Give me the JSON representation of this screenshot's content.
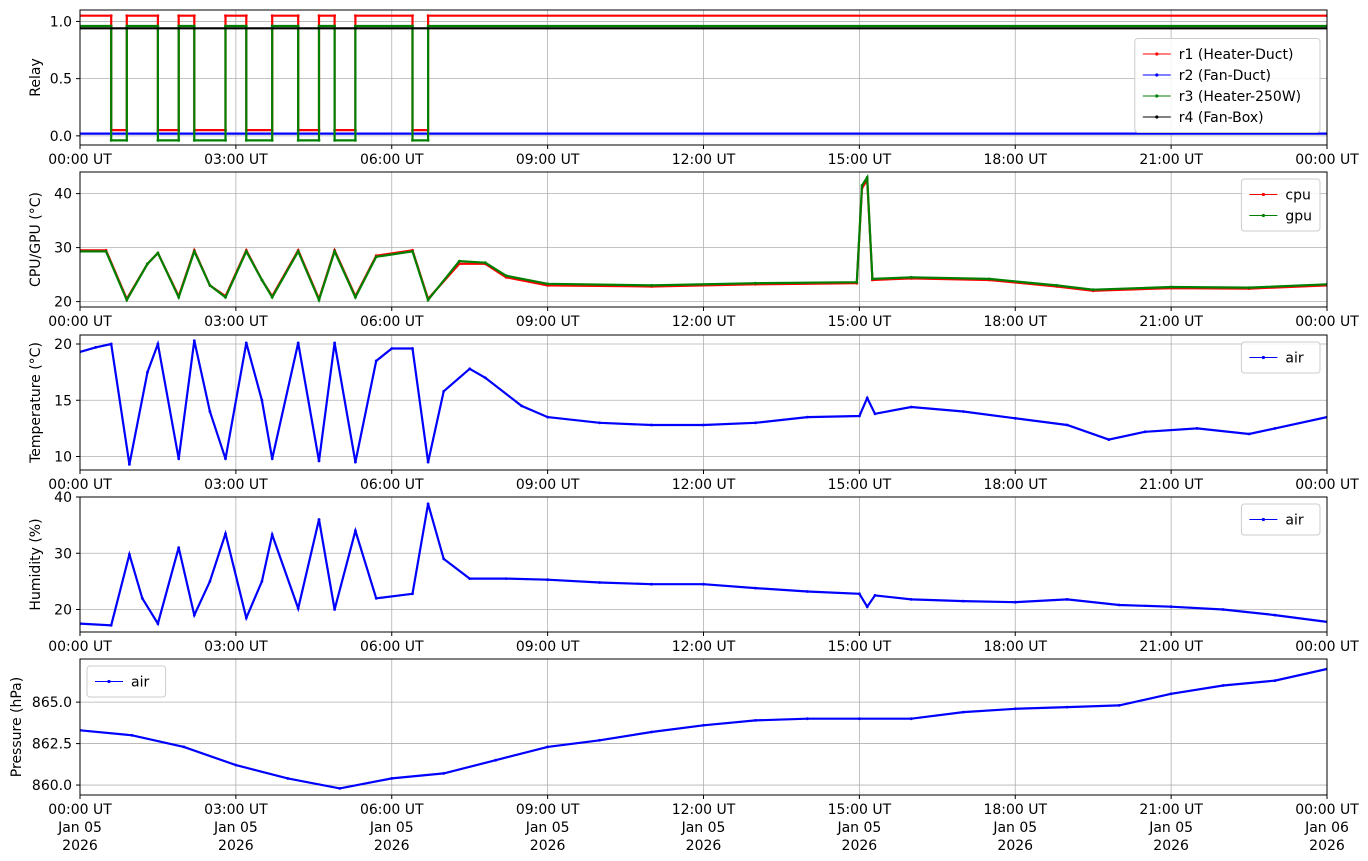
{
  "chart_data": [
    {
      "type": "line",
      "ylabel": "Relay",
      "ylim": [
        -0.08,
        1.1
      ],
      "yticks": [
        "0.0",
        "0.5",
        "1.0"
      ],
      "ytick_values": [
        0.0,
        0.5,
        1.0
      ],
      "grid": true,
      "legend_position": "center-right",
      "series": [
        {
          "name": "r1 (Heater-Duct)",
          "color": "#ff0000",
          "values": [
            [
              0,
              1.05
            ],
            [
              0.6,
              1.05
            ],
            [
              0.6,
              0.05
            ],
            [
              0.9,
              0.05
            ],
            [
              0.9,
              1.05
            ],
            [
              1.5,
              1.05
            ],
            [
              1.5,
              0.05
            ],
            [
              1.9,
              0.05
            ],
            [
              1.9,
              1.05
            ],
            [
              2.2,
              1.05
            ],
            [
              2.2,
              0.05
            ],
            [
              2.8,
              0.05
            ],
            [
              2.8,
              1.05
            ],
            [
              3.2,
              1.05
            ],
            [
              3.2,
              0.05
            ],
            [
              3.7,
              0.05
            ],
            [
              3.7,
              1.05
            ],
            [
              4.2,
              1.05
            ],
            [
              4.2,
              0.05
            ],
            [
              4.6,
              0.05
            ],
            [
              4.6,
              1.05
            ],
            [
              4.9,
              1.05
            ],
            [
              4.9,
              0.05
            ],
            [
              5.3,
              0.05
            ],
            [
              5.3,
              1.05
            ],
            [
              6.4,
              1.05
            ],
            [
              6.4,
              0.05
            ],
            [
              6.7,
              0.05
            ],
            [
              6.7,
              1.05
            ],
            [
              24,
              1.05
            ]
          ]
        },
        {
          "name": "r2 (Fan-Duct)",
          "color": "#0000ff",
          "values": [
            [
              0,
              0.02
            ],
            [
              24,
              0.02
            ]
          ]
        },
        {
          "name": "r3 (Heater-250W)",
          "color": "#008000",
          "values": [
            [
              0,
              0.96
            ],
            [
              0.6,
              0.96
            ],
            [
              0.6,
              -0.04
            ],
            [
              0.9,
              -0.04
            ],
            [
              0.9,
              0.96
            ],
            [
              1.5,
              0.96
            ],
            [
              1.5,
              -0.04
            ],
            [
              1.9,
              -0.04
            ],
            [
              1.9,
              0.96
            ],
            [
              2.2,
              0.96
            ],
            [
              2.2,
              -0.04
            ],
            [
              2.8,
              -0.04
            ],
            [
              2.8,
              0.96
            ],
            [
              3.2,
              0.96
            ],
            [
              3.2,
              -0.04
            ],
            [
              3.7,
              -0.04
            ],
            [
              3.7,
              0.96
            ],
            [
              4.2,
              0.96
            ],
            [
              4.2,
              -0.04
            ],
            [
              4.6,
              -0.04
            ],
            [
              4.6,
              0.96
            ],
            [
              4.9,
              0.96
            ],
            [
              4.9,
              -0.04
            ],
            [
              5.3,
              -0.04
            ],
            [
              5.3,
              0.96
            ],
            [
              6.4,
              0.96
            ],
            [
              6.4,
              -0.04
            ],
            [
              6.7,
              -0.04
            ],
            [
              6.7,
              0.96
            ],
            [
              24,
              0.96
            ]
          ]
        },
        {
          "name": "r4 (Fan-Box)",
          "color": "#000000",
          "values": [
            [
              0,
              0.94
            ],
            [
              24,
              0.94
            ]
          ]
        }
      ]
    },
    {
      "type": "line",
      "ylabel": "CPU/GPU (°C)",
      "ylim": [
        19,
        44
      ],
      "yticks": [
        "20",
        "30",
        "40"
      ],
      "ytick_values": [
        20,
        30,
        40
      ],
      "grid": true,
      "legend_position": "top-right",
      "series": [
        {
          "name": "cpu",
          "color": "#ff0000",
          "values": [
            [
              0,
              29.5
            ],
            [
              0.5,
              29.5
            ],
            [
              0.9,
              20.5
            ],
            [
              1.3,
              27
            ],
            [
              1.5,
              29
            ],
            [
              1.9,
              21
            ],
            [
              2.2,
              29.5
            ],
            [
              2.5,
              23
            ],
            [
              2.8,
              21
            ],
            [
              3.2,
              29.5
            ],
            [
              3.5,
              24
            ],
            [
              3.7,
              21
            ],
            [
              4.2,
              29.5
            ],
            [
              4.6,
              20.5
            ],
            [
              4.9,
              29.5
            ],
            [
              5.3,
              21
            ],
            [
              5.7,
              28.5
            ],
            [
              6.4,
              29.5
            ],
            [
              6.7,
              20.5
            ],
            [
              7.3,
              27
            ],
            [
              7.8,
              27
            ],
            [
              8.2,
              24.5
            ],
            [
              9,
              23
            ],
            [
              11,
              22.8
            ],
            [
              13,
              23.2
            ],
            [
              14.95,
              23.4
            ],
            [
              15.05,
              41
            ],
            [
              15.15,
              42.5
            ],
            [
              15.25,
              24
            ],
            [
              16,
              24.3
            ],
            [
              17.5,
              24
            ],
            [
              18.8,
              22.8
            ],
            [
              19.5,
              22
            ],
            [
              21,
              22.5
            ],
            [
              22.5,
              22.4
            ],
            [
              24,
              23
            ]
          ]
        },
        {
          "name": "gpu",
          "color": "#008000",
          "values": [
            [
              0,
              29.3
            ],
            [
              0.5,
              29.3
            ],
            [
              0.9,
              20.3
            ],
            [
              1.3,
              27
            ],
            [
              1.5,
              29
            ],
            [
              1.9,
              20.8
            ],
            [
              2.2,
              29.3
            ],
            [
              2.5,
              23
            ],
            [
              2.8,
              20.8
            ],
            [
              3.2,
              29.3
            ],
            [
              3.5,
              24
            ],
            [
              3.7,
              20.8
            ],
            [
              4.2,
              29.3
            ],
            [
              4.6,
              20.3
            ],
            [
              4.9,
              29.3
            ],
            [
              5.3,
              20.8
            ],
            [
              5.7,
              28.3
            ],
            [
              6.4,
              29.3
            ],
            [
              6.7,
              20.3
            ],
            [
              7.3,
              27.5
            ],
            [
              7.8,
              27.2
            ],
            [
              8.2,
              24.8
            ],
            [
              9,
              23.3
            ],
            [
              11,
              23
            ],
            [
              13,
              23.4
            ],
            [
              14.95,
              23.6
            ],
            [
              15.05,
              41.5
            ],
            [
              15.15,
              43
            ],
            [
              15.25,
              24.2
            ],
            [
              16,
              24.5
            ],
            [
              17.5,
              24.2
            ],
            [
              18.8,
              23
            ],
            [
              19.5,
              22.2
            ],
            [
              21,
              22.7
            ],
            [
              22.5,
              22.6
            ],
            [
              24,
              23.2
            ]
          ]
        }
      ]
    },
    {
      "type": "line",
      "ylabel": "Temperature (°C)",
      "ylim": [
        8.8,
        20.8
      ],
      "yticks": [
        "10",
        "15",
        "20"
      ],
      "ytick_values": [
        10,
        15,
        20
      ],
      "grid": true,
      "legend_position": "top-right",
      "series": [
        {
          "name": "air",
          "color": "#0000ff",
          "values": [
            [
              0,
              19.3
            ],
            [
              0.3,
              19.7
            ],
            [
              0.6,
              20
            ],
            [
              0.95,
              9.3
            ],
            [
              1.3,
              17.5
            ],
            [
              1.5,
              20
            ],
            [
              1.9,
              9.8
            ],
            [
              2.2,
              20.3
            ],
            [
              2.5,
              14
            ],
            [
              2.8,
              9.8
            ],
            [
              3.2,
              20.1
            ],
            [
              3.5,
              15
            ],
            [
              3.7,
              9.8
            ],
            [
              4.2,
              20.1
            ],
            [
              4.6,
              9.6
            ],
            [
              4.9,
              20.1
            ],
            [
              5.3,
              9.5
            ],
            [
              5.7,
              18.5
            ],
            [
              6,
              19.6
            ],
            [
              6.4,
              19.6
            ],
            [
              6.7,
              9.5
            ],
            [
              7,
              15.8
            ],
            [
              7.5,
              17.8
            ],
            [
              7.8,
              17
            ],
            [
              8.5,
              14.5
            ],
            [
              9,
              13.5
            ],
            [
              10,
              13
            ],
            [
              11,
              12.8
            ],
            [
              12,
              12.8
            ],
            [
              13,
              13
            ],
            [
              14,
              13.5
            ],
            [
              15,
              13.6
            ],
            [
              15.15,
              15.2
            ],
            [
              15.3,
              13.8
            ],
            [
              16,
              14.4
            ],
            [
              17,
              14
            ],
            [
              18,
              13.4
            ],
            [
              19,
              12.8
            ],
            [
              19.8,
              11.5
            ],
            [
              20.5,
              12.2
            ],
            [
              21.5,
              12.5
            ],
            [
              22.5,
              12
            ],
            [
              23,
              12.5
            ],
            [
              24,
              13.5
            ]
          ]
        }
      ]
    },
    {
      "type": "line",
      "ylabel": "Humidity (%)",
      "ylim": [
        16,
        40
      ],
      "yticks": [
        "20",
        "30",
        "40"
      ],
      "ytick_values": [
        20,
        30,
        40
      ],
      "grid": true,
      "legend_position": "top-right",
      "series": [
        {
          "name": "air",
          "color": "#0000ff",
          "values": [
            [
              0,
              17.5
            ],
            [
              0.6,
              17.2
            ],
            [
              0.95,
              29.8
            ],
            [
              1.2,
              22
            ],
            [
              1.5,
              17.5
            ],
            [
              1.9,
              31
            ],
            [
              2.2,
              19
            ],
            [
              2.5,
              25
            ],
            [
              2.8,
              33.5
            ],
            [
              3.2,
              18.5
            ],
            [
              3.5,
              25
            ],
            [
              3.7,
              33.3
            ],
            [
              4.2,
              20.2
            ],
            [
              4.6,
              36
            ],
            [
              4.9,
              20
            ],
            [
              5.3,
              34
            ],
            [
              5.7,
              22
            ],
            [
              6.4,
              22.8
            ],
            [
              6.7,
              38.8
            ],
            [
              7,
              29
            ],
            [
              7.5,
              25.5
            ],
            [
              8.2,
              25.5
            ],
            [
              9,
              25.3
            ],
            [
              10,
              24.8
            ],
            [
              11,
              24.5
            ],
            [
              12,
              24.5
            ],
            [
              13,
              23.8
            ],
            [
              14,
              23.2
            ],
            [
              15,
              22.8
            ],
            [
              15.15,
              20.5
            ],
            [
              15.3,
              22.5
            ],
            [
              16,
              21.8
            ],
            [
              17,
              21.5
            ],
            [
              18,
              21.3
            ],
            [
              19,
              21.8
            ],
            [
              20,
              20.8
            ],
            [
              21,
              20.5
            ],
            [
              22,
              20
            ],
            [
              23,
              19
            ],
            [
              24,
              17.8
            ]
          ]
        }
      ]
    },
    {
      "type": "line",
      "ylabel": "Pressure (hPa)",
      "ylim": [
        859.4,
        867.6
      ],
      "yticks": [
        "860.0",
        "862.5",
        "865.0"
      ],
      "ytick_values": [
        860.0,
        862.5,
        865.0
      ],
      "grid": true,
      "legend_position": "top-left",
      "series": [
        {
          "name": "air",
          "color": "#0000ff",
          "values": [
            [
              0,
              863.3
            ],
            [
              1,
              863
            ],
            [
              2,
              862.3
            ],
            [
              3,
              861.2
            ],
            [
              4,
              860.4
            ],
            [
              5,
              859.8
            ],
            [
              6,
              860.4
            ],
            [
              7,
              860.7
            ],
            [
              8,
              861.5
            ],
            [
              9,
              862.3
            ],
            [
              10,
              862.7
            ],
            [
              11,
              863.2
            ],
            [
              12,
              863.6
            ],
            [
              13,
              863.9
            ],
            [
              14,
              864
            ],
            [
              15,
              864
            ],
            [
              16,
              864
            ],
            [
              17,
              864.4
            ],
            [
              18,
              864.6
            ],
            [
              19,
              864.7
            ],
            [
              20,
              864.8
            ],
            [
              21,
              865.5
            ],
            [
              22,
              866
            ],
            [
              23,
              866.3
            ],
            [
              24,
              867
            ]
          ]
        }
      ]
    }
  ],
  "xaxis": {
    "xlim": [
      0,
      24
    ],
    "tick_values": [
      0,
      3,
      6,
      9,
      12,
      15,
      18,
      21,
      24
    ],
    "tick_labels": [
      "00:00 UT",
      "03:00 UT",
      "06:00 UT",
      "09:00 UT",
      "12:00 UT",
      "15:00 UT",
      "18:00 UT",
      "21:00 UT",
      "00:00 UT"
    ],
    "date_labels": [
      "Jan 05",
      "Jan 05",
      "Jan 05",
      "Jan 05",
      "Jan 05",
      "Jan 05",
      "Jan 05",
      "Jan 05",
      "Jan 06"
    ],
    "year_labels": [
      "2026",
      "2026",
      "2026",
      "2026",
      "2026",
      "2026",
      "2026",
      "2026",
      "2026"
    ]
  }
}
